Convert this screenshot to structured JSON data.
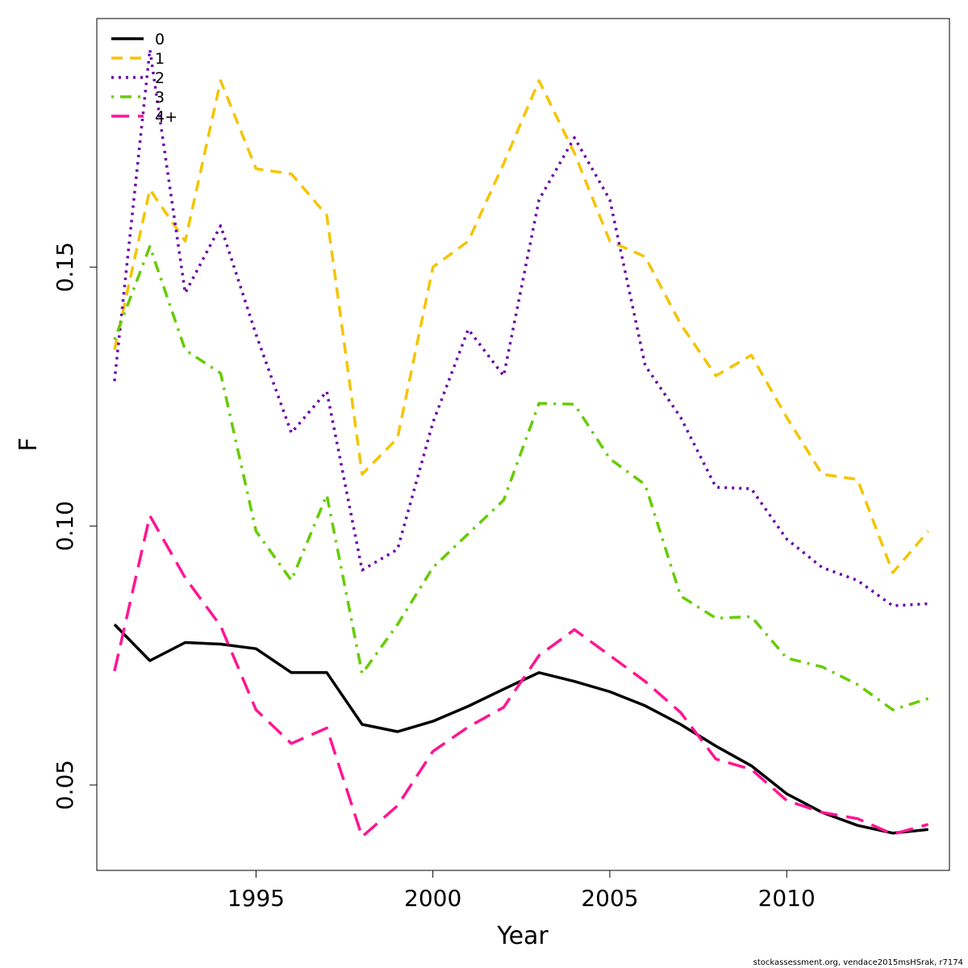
{
  "chart_data": {
    "type": "line",
    "xlabel": "Year",
    "ylabel": "F",
    "xlim": [
      1990.5,
      2014.6
    ],
    "ylim": [
      0.0335,
      0.198
    ],
    "x_ticks": [
      1995,
      2000,
      2005,
      2010
    ],
    "y_ticks": [
      0.05,
      0.1,
      0.15
    ],
    "y_tick_labels": [
      "0.05",
      "0.10",
      "0.15"
    ],
    "legend_position": "top-left",
    "grid": false,
    "x": [
      1991,
      1992,
      1993,
      1994,
      1995,
      1996,
      1997,
      1998,
      1999,
      2000,
      2001,
      2002,
      2003,
      2004,
      2005,
      2006,
      2007,
      2008,
      2009,
      2010,
      2011,
      2012,
      2013,
      2014
    ],
    "series": [
      {
        "name": "0",
        "color": "#000000",
        "dash": "solid",
        "values": [
          0.081,
          0.074,
          0.0775,
          0.0772,
          0.0763,
          0.0717,
          0.0717,
          0.0617,
          0.0603,
          0.0623,
          0.0652,
          0.0685,
          0.0717,
          0.07,
          0.068,
          0.0653,
          0.0617,
          0.0575,
          0.0537,
          0.0483,
          0.0447,
          0.0422,
          0.0407,
          0.0414
        ]
      },
      {
        "name": "1",
        "color": "#f5c400",
        "dash": "short-dash",
        "values": [
          0.134,
          0.165,
          0.155,
          0.186,
          0.169,
          0.168,
          0.16,
          0.11,
          0.117,
          0.15,
          0.155,
          0.17,
          0.186,
          0.172,
          0.155,
          0.152,
          0.139,
          0.129,
          0.133,
          0.121,
          0.11,
          0.109,
          0.091,
          0.099
        ]
      },
      {
        "name": "2",
        "color": "#6a00a8",
        "dash": "dotted",
        "values": [
          0.128,
          0.192,
          0.145,
          0.158,
          0.137,
          0.118,
          0.126,
          0.0915,
          0.0955,
          0.12,
          0.138,
          0.129,
          0.163,
          0.175,
          0.163,
          0.131,
          0.121,
          0.1075,
          0.1072,
          0.0975,
          0.092,
          0.0895,
          0.0846,
          0.085
        ]
      },
      {
        "name": "3",
        "color": "#66cc00",
        "dash": "dot-dash",
        "values": [
          0.136,
          0.154,
          0.134,
          0.1295,
          0.099,
          0.0895,
          0.106,
          0.0715,
          0.081,
          0.092,
          0.0985,
          0.105,
          0.1237,
          0.1235,
          0.113,
          0.108,
          0.0865,
          0.0822,
          0.0825,
          0.0745,
          0.0728,
          0.0694,
          0.0645,
          0.0667
        ]
      },
      {
        "name": "4+",
        "color": "#ff1493",
        "dash": "long-dash",
        "values": [
          0.072,
          0.102,
          0.09,
          0.0807,
          0.0645,
          0.058,
          0.061,
          0.04,
          0.046,
          0.0565,
          0.0612,
          0.065,
          0.075,
          0.08,
          0.075,
          0.07,
          0.064,
          0.055,
          0.053,
          0.047,
          0.0447,
          0.0435,
          0.0405,
          0.0424
        ]
      }
    ]
  },
  "credit": "stockassessment.org, vendace2015msHSrak, r7174"
}
